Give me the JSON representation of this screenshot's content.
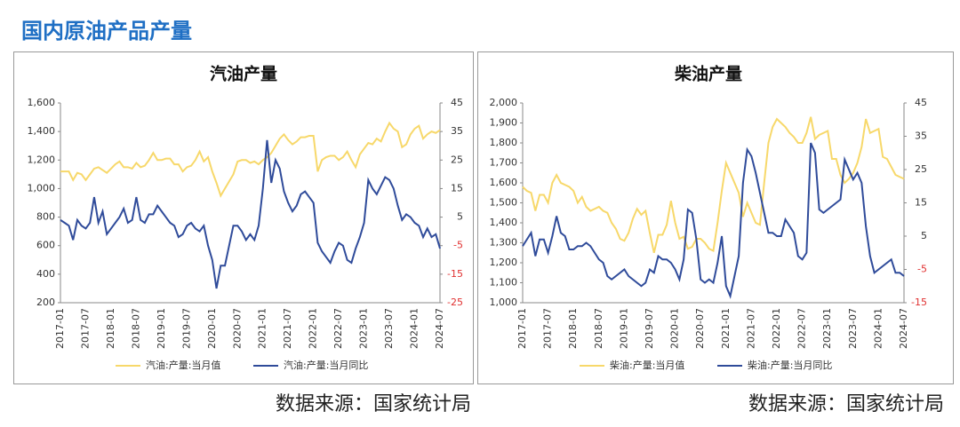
{
  "header": {
    "title": "国内原油产品产量"
  },
  "chart_data": [
    {
      "type": "line",
      "title": "汽油产量",
      "source": "数据来源：国家统计局",
      "categories": [
        "2017-01",
        null,
        null,
        null,
        null,
        null,
        "2017-07",
        null,
        null,
        null,
        null,
        null,
        "2018-01",
        null,
        null,
        null,
        null,
        null,
        "2018-07",
        null,
        null,
        null,
        null,
        null,
        "2019-01",
        null,
        null,
        null,
        null,
        null,
        "2019-07",
        null,
        null,
        null,
        null,
        null,
        "2020-01",
        null,
        null,
        null,
        null,
        null,
        "2020-07",
        null,
        null,
        null,
        null,
        null,
        "2021-01",
        null,
        null,
        null,
        null,
        null,
        "2021-07",
        null,
        null,
        null,
        null,
        null,
        "2022-01",
        null,
        null,
        null,
        null,
        null,
        "2022-07",
        null,
        null,
        null,
        null,
        null,
        "2023-01",
        null,
        null,
        null,
        null,
        null,
        "2023-07",
        null,
        null,
        null,
        null,
        null,
        "2024-01",
        null,
        null,
        null,
        null,
        null,
        "2024-07"
      ],
      "series": [
        {
          "name": "汽油:产量:当月值",
          "color": "#f7d86a",
          "values": [
            1120,
            1120,
            1120,
            1060,
            1110,
            1100,
            1060,
            1100,
            1140,
            1150,
            1130,
            1110,
            1140,
            1170,
            1190,
            1150,
            1150,
            1140,
            1180,
            1150,
            1160,
            1200,
            1250,
            1200,
            1200,
            1210,
            1210,
            1170,
            1170,
            1120,
            1150,
            1160,
            1200,
            1260,
            1190,
            1220,
            1120,
            1040,
            950,
            1000,
            1050,
            1100,
            1190,
            1200,
            1200,
            1180,
            1190,
            1170,
            1200,
            1220,
            1250,
            1300,
            1350,
            1380,
            1340,
            1310,
            1330,
            1360,
            1360,
            1370,
            1370,
            1120,
            1200,
            1220,
            1230,
            1230,
            1200,
            1220,
            1260,
            1200,
            1150,
            1240,
            1280,
            1320,
            1310,
            1350,
            1330,
            1400,
            1460,
            1420,
            1400,
            1290,
            1310,
            1380,
            1420,
            1440,
            1350,
            1380,
            1400,
            1390,
            1410
          ]
        },
        {
          "name": "汽油:产量:当月同比",
          "color": "#2f4b9a",
          "axis": "y2",
          "values": [
            4,
            3,
            2,
            -3,
            4,
            2,
            1,
            3,
            12,
            3,
            7,
            -1,
            1,
            3,
            5,
            8,
            3,
            4,
            12,
            4,
            3,
            6,
            6,
            9,
            7,
            5,
            3,
            2,
            -2,
            -1,
            2,
            3,
            1,
            0,
            2,
            -5,
            -10,
            -20,
            -12,
            -12,
            -5,
            2,
            2,
            0,
            -3,
            -1,
            -3,
            2,
            15,
            32,
            17,
            25,
            22,
            14,
            10,
            7,
            9,
            13,
            14,
            12,
            10,
            -4,
            -7,
            -9,
            -11,
            -7,
            -4,
            -5,
            -10,
            -11,
            -6,
            -2,
            3,
            18,
            15,
            13,
            16,
            19,
            18,
            15,
            9,
            4,
            6,
            5,
            3,
            2,
            -2,
            1,
            -2,
            -1,
            -6
          ]
        }
      ],
      "ylim": [
        200,
        1600
      ],
      "yticks": [
        200,
        400,
        600,
        800,
        {
          "value": 1000,
          "label": "1,000"
        },
        {
          "value": 1200,
          "label": "1,200"
        },
        {
          "value": 1400,
          "label": "1,400"
        },
        {
          "value": 1600,
          "label": "1,600"
        }
      ],
      "y2lim": [
        -25,
        45
      ],
      "y2ticks": [
        -25,
        -15,
        -5,
        5,
        15,
        25,
        35,
        45
      ]
    },
    {
      "type": "line",
      "title": "柴油产量",
      "source": "数据来源：国家统计局",
      "categories": [
        "2017-01",
        null,
        null,
        null,
        null,
        null,
        "2017-07",
        null,
        null,
        null,
        null,
        null,
        "2018-01",
        null,
        null,
        null,
        null,
        null,
        "2018-07",
        null,
        null,
        null,
        null,
        null,
        "2019-01",
        null,
        null,
        null,
        null,
        null,
        "2019-07",
        null,
        null,
        null,
        null,
        null,
        "2020-01",
        null,
        null,
        null,
        null,
        null,
        "2020-07",
        null,
        null,
        null,
        null,
        null,
        "2021-01",
        null,
        null,
        null,
        null,
        null,
        "2021-07",
        null,
        null,
        null,
        null,
        null,
        "2022-01",
        null,
        null,
        null,
        null,
        null,
        "2022-07",
        null,
        null,
        null,
        null,
        null,
        "2023-01",
        null,
        null,
        null,
        null,
        null,
        "2023-07",
        null,
        null,
        null,
        null,
        null,
        "2024-01",
        null,
        null,
        null,
        null,
        null,
        "2024-07"
      ],
      "series": [
        {
          "name": "柴油:产量:当月值",
          "color": "#f7d86a",
          "values": [
            1580,
            1560,
            1550,
            1460,
            1540,
            1540,
            1500,
            1600,
            1640,
            1600,
            1590,
            1580,
            1560,
            1500,
            1530,
            1480,
            1460,
            1470,
            1480,
            1460,
            1450,
            1400,
            1370,
            1320,
            1310,
            1350,
            1420,
            1470,
            1440,
            1460,
            1350,
            1250,
            1340,
            1340,
            1390,
            1510,
            1400,
            1320,
            1330,
            1270,
            1280,
            1320,
            1320,
            1300,
            1270,
            1260,
            1400,
            1560,
            1700,
            1650,
            1600,
            1550,
            1430,
            1500,
            1450,
            1400,
            1390,
            1600,
            1800,
            1880,
            1920,
            1900,
            1880,
            1850,
            1830,
            1800,
            1800,
            1850,
            1930,
            1820,
            1840,
            1850,
            1860,
            1720,
            1720,
            1640,
            1600,
            1620,
            1650,
            1700,
            1780,
            1920,
            1850,
            1860,
            1870,
            1730,
            1720,
            1680,
            1640,
            1630,
            1620
          ]
        },
        {
          "name": "柴油:产量:当月同比",
          "color": "#2f4b9a",
          "axis": "y2",
          "values": [
            2,
            4,
            6,
            -1,
            4,
            4,
            0,
            5,
            11,
            6,
            5,
            1,
            1,
            2,
            2,
            3,
            2,
            0,
            -2,
            -3,
            -7,
            -8,
            -7,
            -6,
            -5,
            -7,
            -8,
            -9,
            -10,
            -9,
            -5,
            -6,
            -1,
            -2,
            -2,
            -3,
            -5,
            -8,
            -2,
            13,
            12,
            4,
            -8,
            -9,
            -8,
            -9,
            -3,
            5,
            -10,
            -13,
            -7,
            -1,
            21,
            31,
            29,
            24,
            18,
            12,
            6,
            6,
            5,
            5,
            10,
            8,
            6,
            -1,
            -2,
            0,
            33,
            30,
            13,
            12,
            13,
            14,
            15,
            16,
            28,
            25,
            22,
            24,
            21,
            8,
            -1,
            -6,
            -5,
            -4,
            -3,
            -2,
            -6,
            -6,
            -7
          ]
        }
      ],
      "ylim": [
        1000,
        2000
      ],
      "yticks": [
        {
          "value": 1000,
          "label": "1,000"
        },
        {
          "value": 1100,
          "label": "1,100"
        },
        {
          "value": 1200,
          "label": "1,200"
        },
        {
          "value": 1300,
          "label": "1,300"
        },
        {
          "value": 1400,
          "label": "1,400"
        },
        {
          "value": 1500,
          "label": "1,500"
        },
        {
          "value": 1600,
          "label": "1,600"
        },
        {
          "value": 1700,
          "label": "1,700"
        },
        {
          "value": 1800,
          "label": "1,800"
        },
        {
          "value": 1900,
          "label": "1,900"
        },
        {
          "value": 2000,
          "label": "2,000"
        }
      ],
      "y2lim": [
        -15,
        45
      ],
      "y2ticks": [
        -15,
        -5,
        5,
        15,
        25,
        35,
        45
      ]
    }
  ]
}
